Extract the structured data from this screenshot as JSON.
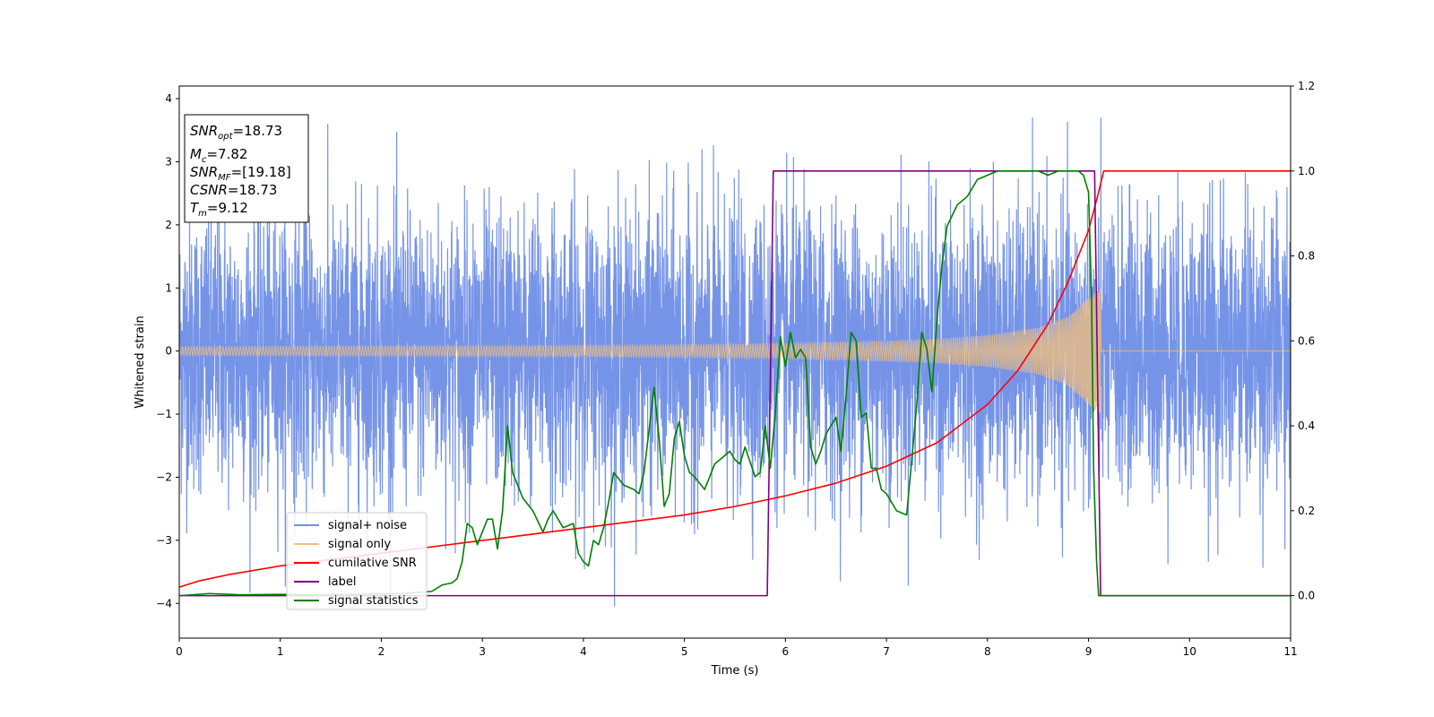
{
  "chart_data": {
    "type": "line",
    "title": "",
    "xlabel": "Time (s)",
    "ylabel": "Whitened strain",
    "xlim": [
      0,
      11
    ],
    "ylim": [
      -4.55,
      4.2
    ],
    "y2lim": [
      -0.1,
      1.2
    ],
    "grid": false,
    "legend_position": "lower-left",
    "x_ticks": [
      "0",
      "1",
      "2",
      "3",
      "4",
      "5",
      "6",
      "7",
      "8",
      "9",
      "10",
      "11"
    ],
    "y_ticks": [
      "−4",
      "−3",
      "−2",
      "−1",
      "0",
      "1",
      "2",
      "3",
      "4"
    ],
    "y2_ticks": [
      "0.0",
      "0.2",
      "0.4",
      "0.6",
      "0.8",
      "1.0",
      "1.2"
    ],
    "annotation": {
      "snr_opt": "=18.73",
      "mc": "=7.82",
      "snr_mf": "=[19.18]",
      "csnr": "=18.73",
      "tm": "=9.12"
    },
    "series": [
      {
        "name": "signal+ noise",
        "axis": "left",
        "color": "#6f8ee6",
        "description": "noise band, approx ±1.3 typical with spikes to ±3.6",
        "noise_std": 1.1,
        "merger_time": 9.12
      },
      {
        "name": "signal only",
        "axis": "left",
        "color": "#f5c07a",
        "description": "chirp envelope growing to ~1.0 at merger then zero",
        "envelope_x": [
          0,
          1,
          2,
          3,
          4,
          5,
          6,
          7,
          7.5,
          8,
          8.5,
          8.8,
          9.0,
          9.12,
          9.13,
          11
        ],
        "envelope_y": [
          0.07,
          0.075,
          0.08,
          0.085,
          0.09,
          0.1,
          0.12,
          0.16,
          0.19,
          0.25,
          0.37,
          0.55,
          0.85,
          1.0,
          0,
          0
        ]
      },
      {
        "name": "cumilative SNR",
        "axis": "right",
        "color": "#ff0000",
        "x": [
          0,
          0.2,
          0.5,
          1,
          1.5,
          2,
          2.5,
          3,
          3.5,
          4,
          4.5,
          5,
          5.5,
          6,
          6.5,
          7,
          7.5,
          8,
          8.3,
          8.6,
          8.8,
          9.0,
          9.1,
          9.15,
          11
        ],
        "y": [
          0.02,
          0.035,
          0.05,
          0.07,
          0.085,
          0.1,
          0.115,
          0.13,
          0.145,
          0.16,
          0.175,
          0.19,
          0.21,
          0.235,
          0.265,
          0.305,
          0.36,
          0.45,
          0.53,
          0.64,
          0.74,
          0.86,
          0.95,
          1.0,
          1.0
        ]
      },
      {
        "name": "label",
        "axis": "right",
        "color": "#800080",
        "x": [
          0,
          5.82,
          5.88,
          9.06,
          9.12,
          11
        ],
        "y": [
          0,
          0,
          1,
          1,
          0,
          0
        ]
      },
      {
        "name": "signal statistics",
        "axis": "right",
        "color": "#008000",
        "x": [
          0,
          0.3,
          0.6,
          1.0,
          1.4,
          1.8,
          2.2,
          2.5,
          2.6,
          2.7,
          2.75,
          2.8,
          2.85,
          2.9,
          2.95,
          3.0,
          3.05,
          3.1,
          3.15,
          3.2,
          3.25,
          3.3,
          3.35,
          3.4,
          3.5,
          3.6,
          3.65,
          3.7,
          3.75,
          3.8,
          3.9,
          3.95,
          4.0,
          4.05,
          4.1,
          4.15,
          4.2,
          4.25,
          4.3,
          4.4,
          4.5,
          4.55,
          4.6,
          4.7,
          4.75,
          4.8,
          4.85,
          4.9,
          4.95,
          5.0,
          5.05,
          5.1,
          5.2,
          5.3,
          5.4,
          5.45,
          5.5,
          5.55,
          5.6,
          5.7,
          5.75,
          5.8,
          5.85,
          5.9,
          5.95,
          6.0,
          6.05,
          6.1,
          6.15,
          6.2,
          6.25,
          6.3,
          6.35,
          6.4,
          6.45,
          6.5,
          6.55,
          6.6,
          6.65,
          6.7,
          6.75,
          6.8,
          6.85,
          6.9,
          6.95,
          7.0,
          7.1,
          7.2,
          7.3,
          7.35,
          7.4,
          7.45,
          7.5,
          7.55,
          7.6,
          7.7,
          7.8,
          7.9,
          8.0,
          8.1,
          8.3,
          8.5,
          8.6,
          8.7,
          8.8,
          8.9,
          8.95,
          9.0,
          9.03,
          9.05,
          9.08,
          9.1,
          9.13,
          9.2,
          11
        ],
        "y": [
          0,
          0.005,
          0.002,
          0.003,
          0.002,
          0.003,
          0.005,
          0.01,
          0.025,
          0.03,
          0.04,
          0.08,
          0.17,
          0.16,
          0.12,
          0.15,
          0.18,
          0.18,
          0.11,
          0.2,
          0.4,
          0.29,
          0.26,
          0.23,
          0.2,
          0.15,
          0.18,
          0.2,
          0.18,
          0.16,
          0.17,
          0.1,
          0.08,
          0.07,
          0.13,
          0.12,
          0.16,
          0.22,
          0.29,
          0.26,
          0.25,
          0.24,
          0.29,
          0.49,
          0.37,
          0.21,
          0.24,
          0.37,
          0.41,
          0.33,
          0.29,
          0.28,
          0.25,
          0.31,
          0.33,
          0.34,
          0.32,
          0.31,
          0.35,
          0.28,
          0.29,
          0.4,
          0.3,
          0.43,
          0.61,
          0.54,
          0.62,
          0.56,
          0.58,
          0.56,
          0.35,
          0.31,
          0.34,
          0.38,
          0.4,
          0.42,
          0.34,
          0.47,
          0.62,
          0.6,
          0.42,
          0.43,
          0.3,
          0.3,
          0.25,
          0.24,
          0.2,
          0.19,
          0.45,
          0.62,
          0.58,
          0.48,
          0.65,
          0.78,
          0.87,
          0.92,
          0.94,
          0.98,
          0.99,
          1.0,
          1.0,
          1.0,
          0.99,
          1.0,
          1.0,
          1.0,
          0.99,
          0.95,
          0.7,
          0.3,
          0.08,
          0.0,
          0.0,
          0.0,
          0.0
        ]
      }
    ]
  }
}
